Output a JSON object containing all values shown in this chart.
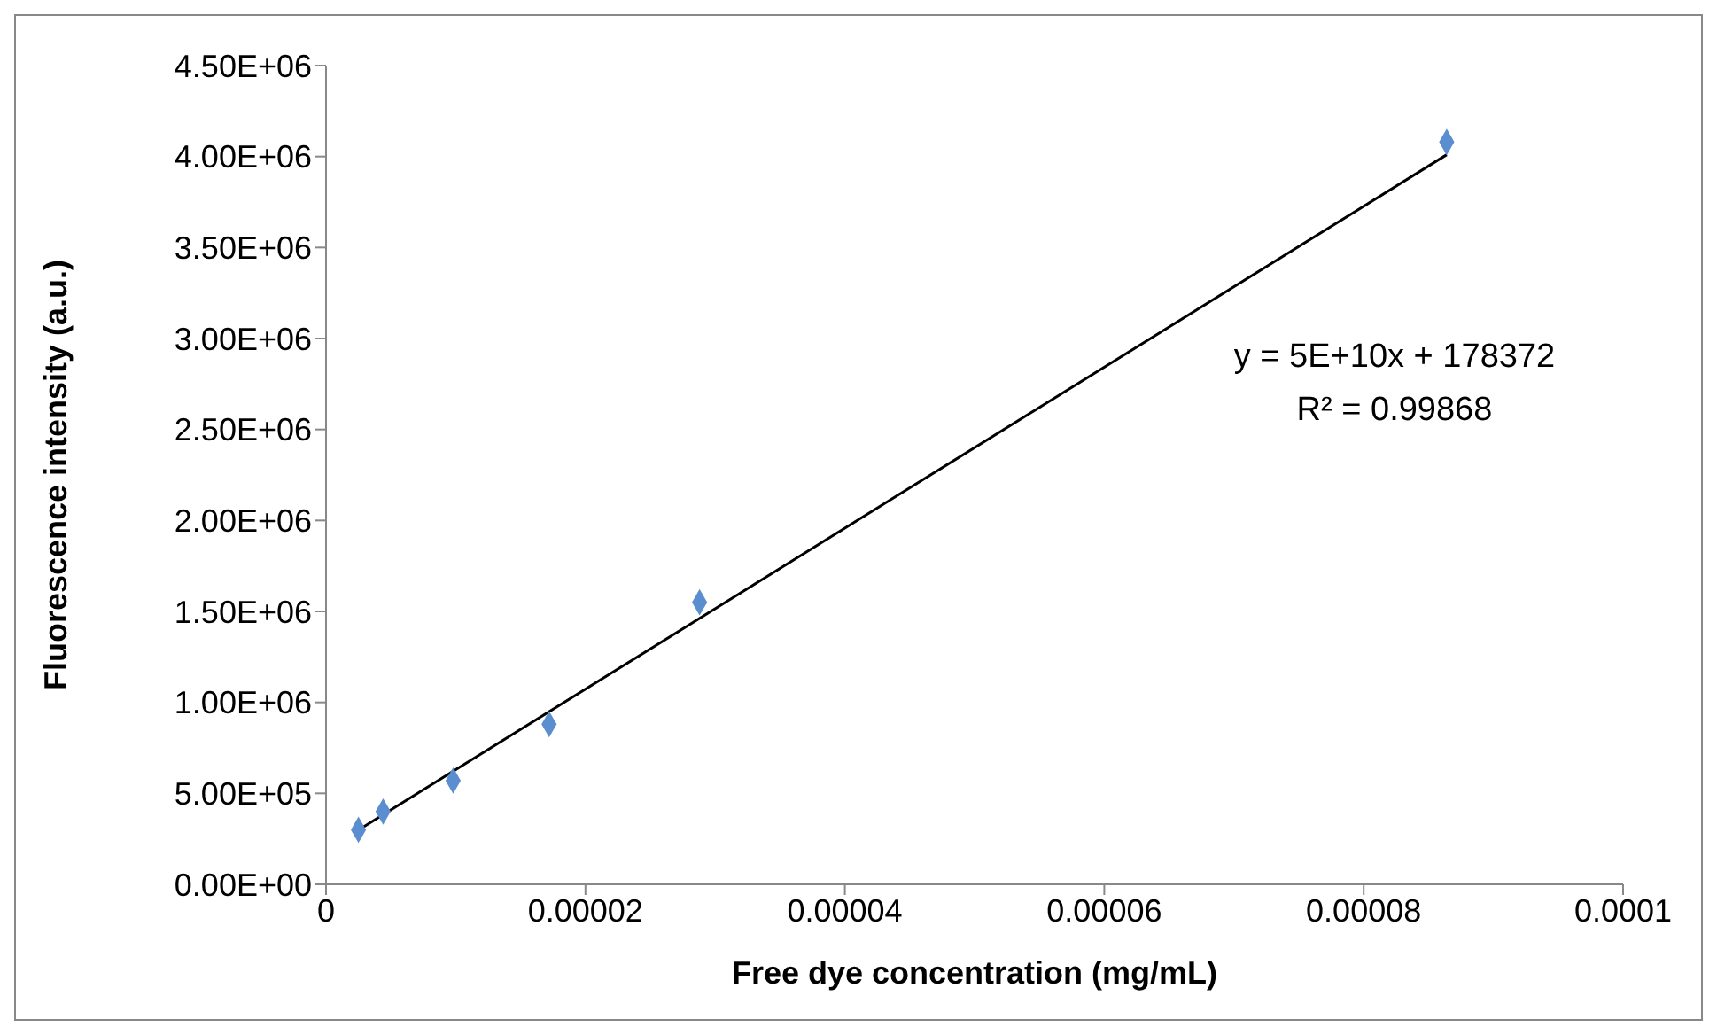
{
  "chart_data": {
    "type": "scatter",
    "xlabel": "Free dye concentration (mg/mL)",
    "ylabel": "Fluorescence intensity (a.u.)",
    "series": [
      {
        "color": "#5b8ecf",
        "marker": "diamond",
        "x": [
          2.5e-06,
          4.4e-06,
          9.8e-06,
          1.72e-05,
          2.88e-05,
          8.64e-05
        ],
        "values": [
          300000,
          400000,
          570000,
          880000,
          1550000,
          4080000
        ]
      },
      {
        "type": "line",
        "color": "#000000",
        "marker": "none",
        "line_style": "solid",
        "x": [
          2.3e-06,
          8.64e-05
        ],
        "values": [
          290000,
          4010000
        ]
      }
    ],
    "xlim": [
      0,
      0.0001
    ],
    "xticks": [
      0,
      {
        "value": 2e-05,
        "label": "0.00002"
      },
      {
        "value": 4e-05,
        "label": "0.00004"
      },
      {
        "value": 6e-05,
        "label": "0.00006"
      },
      {
        "value": 8e-05,
        "label": "0.00008"
      },
      0.0001
    ],
    "ylim": [
      0,
      4500000
    ],
    "yticks": [
      {
        "value": 0,
        "label": "0.00E+00"
      },
      {
        "value": 500000,
        "label": "5.00E+05"
      },
      {
        "value": 1000000,
        "label": "1.00E+06"
      },
      {
        "value": 1500000,
        "label": "1.50E+06"
      },
      {
        "value": 2000000,
        "label": "2.00E+06"
      },
      {
        "value": 2500000,
        "label": "2.50E+06"
      },
      {
        "value": 3000000,
        "label": "3.00E+06"
      },
      {
        "value": 3500000,
        "label": "3.50E+06"
      },
      {
        "value": 4000000,
        "label": "4.00E+06"
      },
      {
        "value": 4500000,
        "label": "4.50E+06"
      }
    ],
    "grid": false,
    "annotations": [
      "y = 5E+10x + 178372",
      "R² = 0.99868"
    ]
  }
}
